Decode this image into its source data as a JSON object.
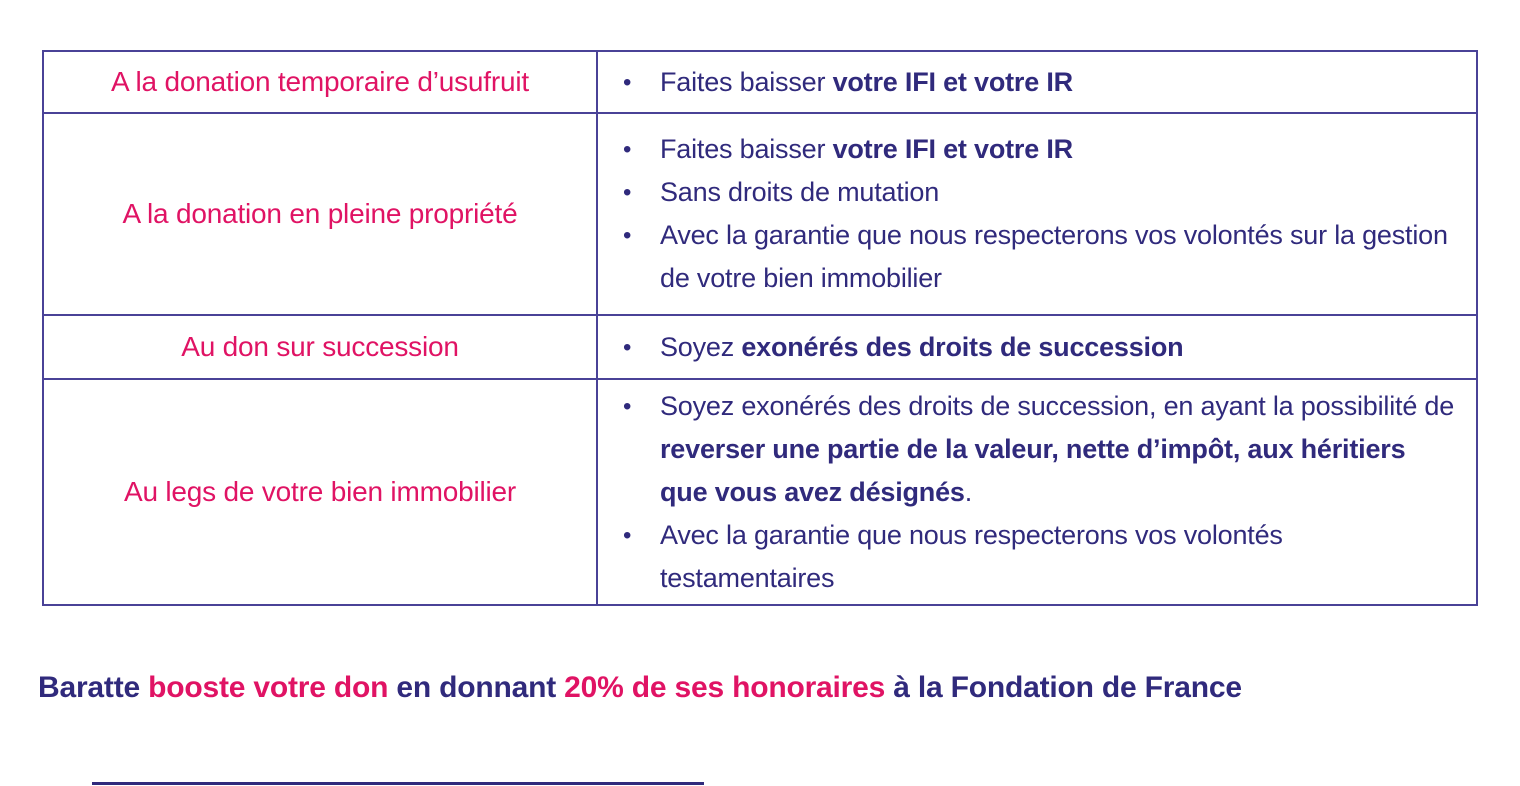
{
  "colors": {
    "pink": "#E01364",
    "navy": "#302A7C",
    "border": "#4A4297"
  },
  "table": {
    "rows": [
      {
        "label": "A la donation temporaire d’usufruit",
        "bullets": [
          [
            {
              "t": "Faites baisser ",
              "b": false
            },
            {
              "t": "votre IFI et votre IR",
              "b": true
            }
          ]
        ]
      },
      {
        "label": "A la donation en pleine propriété",
        "bullets": [
          [
            {
              "t": "Faites baisser ",
              "b": false
            },
            {
              "t": "votre IFI et votre IR",
              "b": true
            }
          ],
          [
            {
              "t": "Sans droits de mutation",
              "b": false
            }
          ],
          [
            {
              "t": "Avec la garantie que nous respecterons vos volontés sur la gestion de votre bien immobilier",
              "b": false
            }
          ]
        ]
      },
      {
        "label": "Au don sur succession",
        "bullets": [
          [
            {
              "t": "Soyez ",
              "b": false
            },
            {
              "t": "exonérés des droits de succession",
              "b": true
            }
          ]
        ]
      },
      {
        "label": "Au legs de votre bien immobilier",
        "bullets": [
          [
            {
              "t": "Soyez exonérés des droits de succession, en ayant la possibilité de ",
              "b": false
            },
            {
              "t": "reverser une partie de la valeur, nette d’impôt, aux héritiers que vous avez désignés",
              "b": true
            },
            {
              "t": ".",
              "b": false
            }
          ],
          [
            {
              "t": "Avec la garantie que nous respecterons vos volontés testamentaires",
              "b": false
            }
          ]
        ]
      }
    ],
    "bullet_glyph": "•"
  },
  "tagline": {
    "segments": [
      {
        "text": "Baratte ",
        "color": "navy"
      },
      {
        "text": "booste votre don ",
        "color": "pink"
      },
      {
        "text": "en donnant ",
        "color": "navy"
      },
      {
        "text": "20% de ses honoraires ",
        "color": "pink"
      },
      {
        "text": "à la Fondation de France",
        "color": "navy"
      }
    ]
  }
}
